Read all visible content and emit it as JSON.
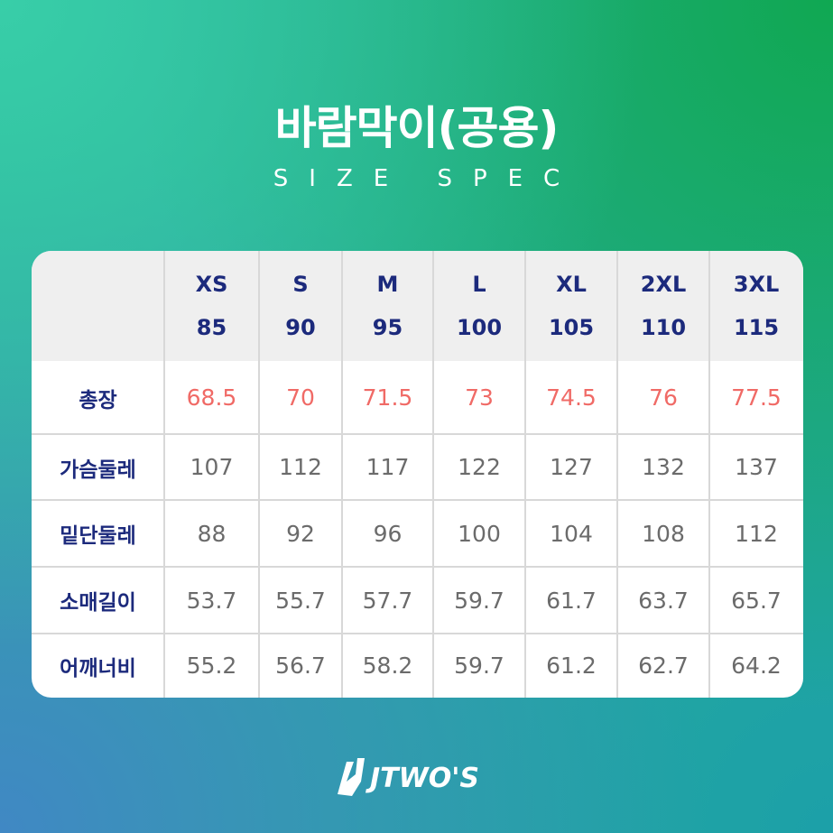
{
  "header": {
    "title": "바람막이(공용)",
    "subtitle": "SIZE SPEC"
  },
  "table": {
    "columns": [
      {
        "size": "XS",
        "number": "85"
      },
      {
        "size": "S",
        "number": "90"
      },
      {
        "size": "M",
        "number": "95"
      },
      {
        "size": "L",
        "number": "100"
      },
      {
        "size": "XL",
        "number": "105"
      },
      {
        "size": "2XL",
        "number": "110"
      },
      {
        "size": "3XL",
        "number": "115"
      }
    ],
    "rows": [
      {
        "label": "총장",
        "values": [
          "68.5",
          "70",
          "71.5",
          "73",
          "74.5",
          "76",
          "77.5"
        ]
      },
      {
        "label": "가슴둘레",
        "values": [
          "107",
          "112",
          "117",
          "122",
          "127",
          "132",
          "137"
        ]
      },
      {
        "label": "밑단둘레",
        "values": [
          "88",
          "92",
          "96",
          "100",
          "104",
          "108",
          "112"
        ]
      },
      {
        "label": "소매길이",
        "values": [
          "53.7",
          "55.7",
          "57.7",
          "59.7",
          "61.7",
          "63.7",
          "65.7"
        ]
      },
      {
        "label": "어깨너비",
        "values": [
          "55.2",
          "56.7",
          "58.2",
          "59.7",
          "61.2",
          "62.7",
          "64.2"
        ]
      }
    ]
  },
  "logo": {
    "text": "JTWO'S"
  }
}
